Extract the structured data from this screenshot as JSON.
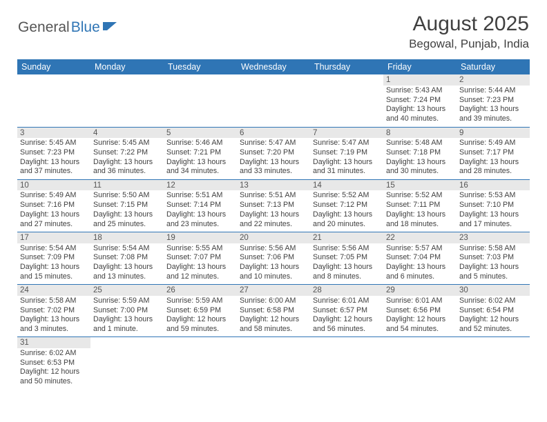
{
  "logo": {
    "text1": "General",
    "text2": "Blue"
  },
  "title": "August 2025",
  "location": "Begowal, Punjab, India",
  "colors": {
    "header_bg": "#2f75b5",
    "header_fg": "#ffffff",
    "daynum_bg": "#e8e8e8",
    "rule": "#2f75b5",
    "text": "#404040",
    "logo_gray": "#555555",
    "logo_blue": "#2f75b5",
    "background": "#ffffff"
  },
  "typography": {
    "title_fontsize": 30,
    "location_fontsize": 17,
    "dayheader_fontsize": 12.5,
    "daynum_fontsize": 11.5,
    "body_fontsize": 10.7,
    "logo_fontsize": 21
  },
  "dayHeaders": [
    "Sunday",
    "Monday",
    "Tuesday",
    "Wednesday",
    "Thursday",
    "Friday",
    "Saturday"
  ],
  "weeks": [
    [
      null,
      null,
      null,
      null,
      null,
      {
        "n": "1",
        "sr": "Sunrise: 5:43 AM",
        "ss": "Sunset: 7:24 PM",
        "dl": "Daylight: 13 hours and 40 minutes."
      },
      {
        "n": "2",
        "sr": "Sunrise: 5:44 AM",
        "ss": "Sunset: 7:23 PM",
        "dl": "Daylight: 13 hours and 39 minutes."
      }
    ],
    [
      {
        "n": "3",
        "sr": "Sunrise: 5:45 AM",
        "ss": "Sunset: 7:23 PM",
        "dl": "Daylight: 13 hours and 37 minutes."
      },
      {
        "n": "4",
        "sr": "Sunrise: 5:45 AM",
        "ss": "Sunset: 7:22 PM",
        "dl": "Daylight: 13 hours and 36 minutes."
      },
      {
        "n": "5",
        "sr": "Sunrise: 5:46 AM",
        "ss": "Sunset: 7:21 PM",
        "dl": "Daylight: 13 hours and 34 minutes."
      },
      {
        "n": "6",
        "sr": "Sunrise: 5:47 AM",
        "ss": "Sunset: 7:20 PM",
        "dl": "Daylight: 13 hours and 33 minutes."
      },
      {
        "n": "7",
        "sr": "Sunrise: 5:47 AM",
        "ss": "Sunset: 7:19 PM",
        "dl": "Daylight: 13 hours and 31 minutes."
      },
      {
        "n": "8",
        "sr": "Sunrise: 5:48 AM",
        "ss": "Sunset: 7:18 PM",
        "dl": "Daylight: 13 hours and 30 minutes."
      },
      {
        "n": "9",
        "sr": "Sunrise: 5:49 AM",
        "ss": "Sunset: 7:17 PM",
        "dl": "Daylight: 13 hours and 28 minutes."
      }
    ],
    [
      {
        "n": "10",
        "sr": "Sunrise: 5:49 AM",
        "ss": "Sunset: 7:16 PM",
        "dl": "Daylight: 13 hours and 27 minutes."
      },
      {
        "n": "11",
        "sr": "Sunrise: 5:50 AM",
        "ss": "Sunset: 7:15 PM",
        "dl": "Daylight: 13 hours and 25 minutes."
      },
      {
        "n": "12",
        "sr": "Sunrise: 5:51 AM",
        "ss": "Sunset: 7:14 PM",
        "dl": "Daylight: 13 hours and 23 minutes."
      },
      {
        "n": "13",
        "sr": "Sunrise: 5:51 AM",
        "ss": "Sunset: 7:13 PM",
        "dl": "Daylight: 13 hours and 22 minutes."
      },
      {
        "n": "14",
        "sr": "Sunrise: 5:52 AM",
        "ss": "Sunset: 7:12 PM",
        "dl": "Daylight: 13 hours and 20 minutes."
      },
      {
        "n": "15",
        "sr": "Sunrise: 5:52 AM",
        "ss": "Sunset: 7:11 PM",
        "dl": "Daylight: 13 hours and 18 minutes."
      },
      {
        "n": "16",
        "sr": "Sunrise: 5:53 AM",
        "ss": "Sunset: 7:10 PM",
        "dl": "Daylight: 13 hours and 17 minutes."
      }
    ],
    [
      {
        "n": "17",
        "sr": "Sunrise: 5:54 AM",
        "ss": "Sunset: 7:09 PM",
        "dl": "Daylight: 13 hours and 15 minutes."
      },
      {
        "n": "18",
        "sr": "Sunrise: 5:54 AM",
        "ss": "Sunset: 7:08 PM",
        "dl": "Daylight: 13 hours and 13 minutes."
      },
      {
        "n": "19",
        "sr": "Sunrise: 5:55 AM",
        "ss": "Sunset: 7:07 PM",
        "dl": "Daylight: 13 hours and 12 minutes."
      },
      {
        "n": "20",
        "sr": "Sunrise: 5:56 AM",
        "ss": "Sunset: 7:06 PM",
        "dl": "Daylight: 13 hours and 10 minutes."
      },
      {
        "n": "21",
        "sr": "Sunrise: 5:56 AM",
        "ss": "Sunset: 7:05 PM",
        "dl": "Daylight: 13 hours and 8 minutes."
      },
      {
        "n": "22",
        "sr": "Sunrise: 5:57 AM",
        "ss": "Sunset: 7:04 PM",
        "dl": "Daylight: 13 hours and 6 minutes."
      },
      {
        "n": "23",
        "sr": "Sunrise: 5:58 AM",
        "ss": "Sunset: 7:03 PM",
        "dl": "Daylight: 13 hours and 5 minutes."
      }
    ],
    [
      {
        "n": "24",
        "sr": "Sunrise: 5:58 AM",
        "ss": "Sunset: 7:02 PM",
        "dl": "Daylight: 13 hours and 3 minutes."
      },
      {
        "n": "25",
        "sr": "Sunrise: 5:59 AM",
        "ss": "Sunset: 7:00 PM",
        "dl": "Daylight: 13 hours and 1 minute."
      },
      {
        "n": "26",
        "sr": "Sunrise: 5:59 AM",
        "ss": "Sunset: 6:59 PM",
        "dl": "Daylight: 12 hours and 59 minutes."
      },
      {
        "n": "27",
        "sr": "Sunrise: 6:00 AM",
        "ss": "Sunset: 6:58 PM",
        "dl": "Daylight: 12 hours and 58 minutes."
      },
      {
        "n": "28",
        "sr": "Sunrise: 6:01 AM",
        "ss": "Sunset: 6:57 PM",
        "dl": "Daylight: 12 hours and 56 minutes."
      },
      {
        "n": "29",
        "sr": "Sunrise: 6:01 AM",
        "ss": "Sunset: 6:56 PM",
        "dl": "Daylight: 12 hours and 54 minutes."
      },
      {
        "n": "30",
        "sr": "Sunrise: 6:02 AM",
        "ss": "Sunset: 6:54 PM",
        "dl": "Daylight: 12 hours and 52 minutes."
      }
    ],
    [
      {
        "n": "31",
        "sr": "Sunrise: 6:02 AM",
        "ss": "Sunset: 6:53 PM",
        "dl": "Daylight: 12 hours and 50 minutes."
      },
      null,
      null,
      null,
      null,
      null,
      null
    ]
  ]
}
